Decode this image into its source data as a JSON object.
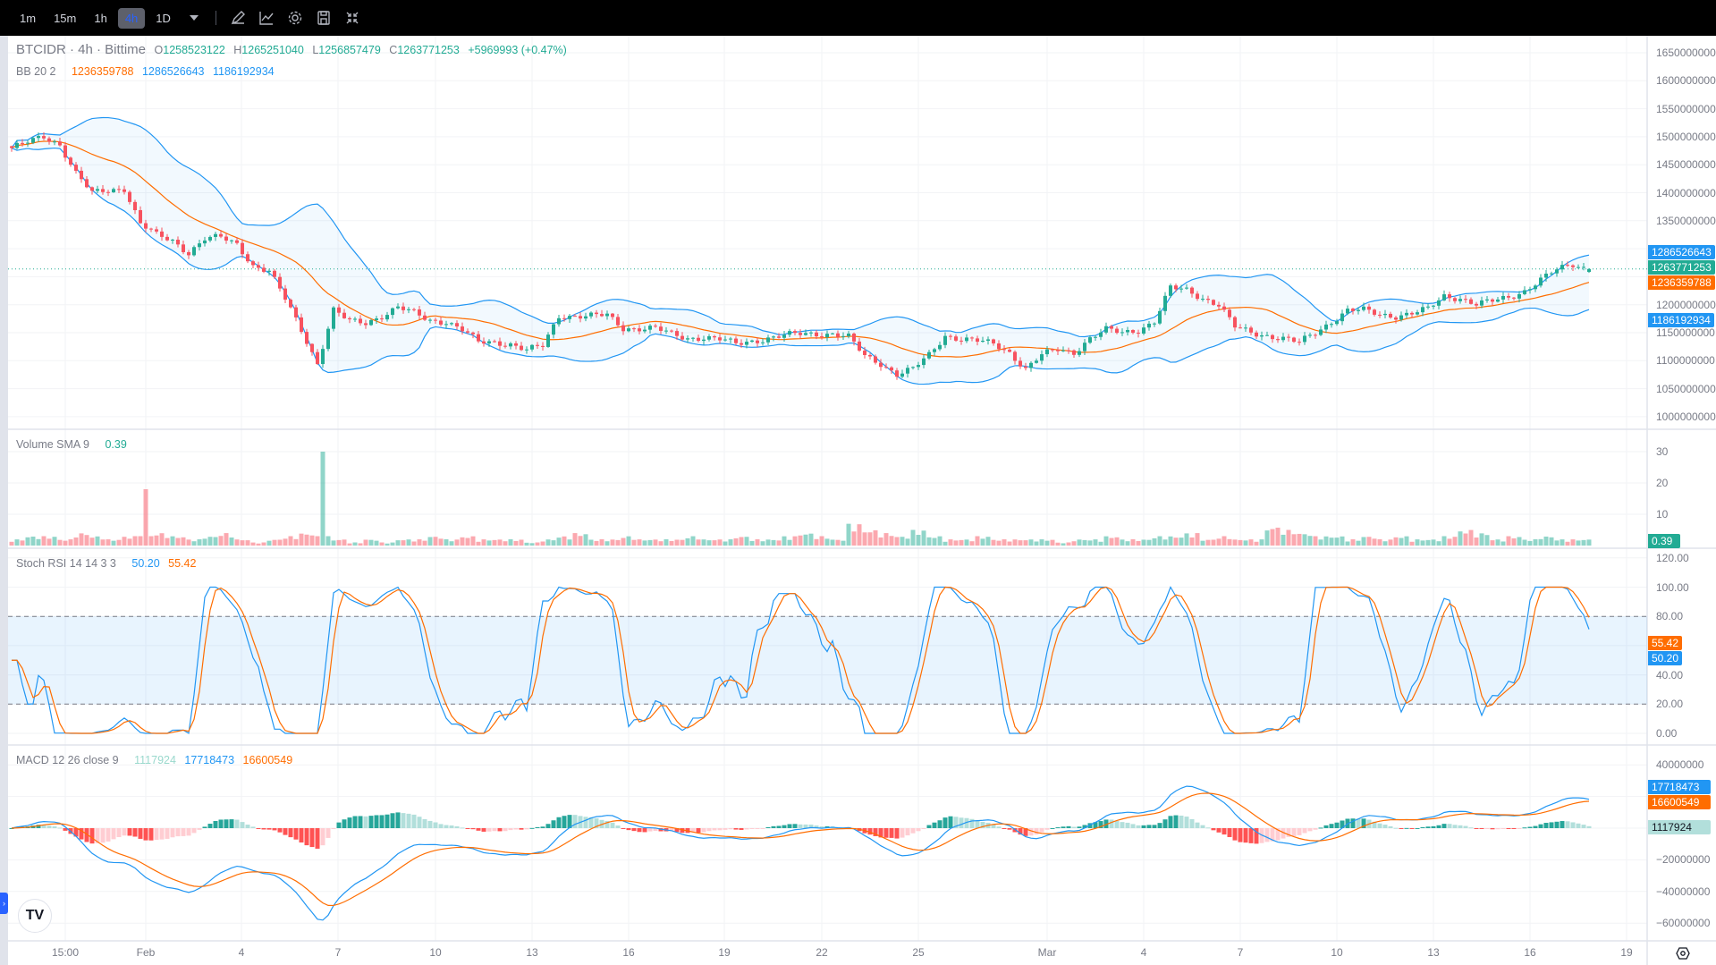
{
  "toolbar": {
    "timeframes": [
      "1m",
      "15m",
      "1h",
      "4h",
      "1D"
    ],
    "active_timeframe": "4h",
    "icons": [
      "chevron-down-icon",
      "drawing-pen-icon",
      "indicators-icon",
      "gear-icon",
      "save-icon",
      "collapse-icon"
    ]
  },
  "legend": {
    "symbol": "BTCIDR · 4h · Bittime",
    "o_label": "O",
    "o": "1258523122",
    "h_label": "H",
    "h": "1265251040",
    "l_label": "L",
    "l": "1256857479",
    "c_label": "C",
    "c": "1263771253",
    "change": "+5969993 (+0.47%)",
    "bb_title": "BB 20 2",
    "bb_basis": "1236359788",
    "bb_upper": "1286526643",
    "bb_lower": "1186192934",
    "vol_title": "Volume SMA 9",
    "vol_value": "0.39",
    "stoch_title": "Stoch RSI 14 14 3 3",
    "stoch_k": "50.20",
    "stoch_d": "55.42",
    "macd_title": "MACD 12 26 close 9",
    "macd_hist": "1117924",
    "macd_line": "17718473",
    "macd_signal": "16600549"
  },
  "colors": {
    "up": "#22ab94",
    "down": "#f7525f",
    "basis": "#ff6d00",
    "bands": "#2196f3",
    "stoch_k": "#2196f3",
    "stoch_d": "#ff6d00",
    "macd": "#2196f3",
    "signal": "#ff6d00",
    "current_price": "#22ab94"
  },
  "chart_data": [
    {
      "type": "candlestick",
      "title": "BTCIDR · 4h · Bittime",
      "interval": "4h",
      "price_axis_ticks": [
        "1650000000",
        "1600000000",
        "1550000000",
        "1500000000",
        "1450000000",
        "1400000000",
        "1350000000",
        "1200000000",
        "1150000000",
        "1100000000",
        "1050000000",
        "1000000000"
      ],
      "ylim": [
        1000000000,
        1650000000
      ],
      "approx_close_millions_every_12h": [
        1480,
        1490,
        1500,
        1486,
        1435,
        1399,
        1404,
        1408,
        1345,
        1324,
        1314,
        1293,
        1318,
        1320,
        1308,
        1270,
        1260,
        1210,
        1155,
        1095,
        1190,
        1170,
        1168,
        1180,
        1195,
        1185,
        1172,
        1170,
        1155,
        1133,
        1133,
        1130,
        1119,
        1126,
        1180,
        1180,
        1180,
        1181,
        1158,
        1158,
        1158,
        1147,
        1140,
        1142,
        1138,
        1130,
        1135,
        1140,
        1145,
        1148,
        1148,
        1148,
        1142,
        1108,
        1095,
        1076,
        1085,
        1110,
        1145,
        1139,
        1135,
        1130,
        1115,
        1085,
        1110,
        1120,
        1115,
        1140,
        1155,
        1150,
        1155,
        1170,
        1230,
        1226,
        1212,
        1200,
        1160,
        1150,
        1145,
        1140,
        1132,
        1150,
        1170,
        1190,
        1190,
        1182,
        1180,
        1185,
        1192,
        1215,
        1212,
        1201,
        1206,
        1213,
        1225,
        1245,
        1262,
        1272,
        1263.77
      ],
      "last": {
        "open": 1258523122,
        "high": 1265251040,
        "low": 1256857479,
        "close": 1263771253
      },
      "overlay": {
        "name": "BB 20 2",
        "basis": 1236359788,
        "upper": 1286526643,
        "lower": 1186192934
      },
      "price_tags": [
        "1286526643",
        "1263771253",
        "1236359788",
        "1186192934"
      ]
    },
    {
      "type": "bar",
      "title": "Volume SMA 9",
      "value": 0.39,
      "axis_ticks": [
        "30",
        "20",
        "10"
      ],
      "ylim": [
        0,
        35
      ],
      "approx_volume_every_12h": [
        2,
        3,
        3,
        2,
        4,
        3,
        2,
        3,
        18,
        4,
        3,
        2,
        3,
        4,
        2,
        1,
        2,
        3,
        4,
        30,
        2,
        1,
        2,
        1,
        2,
        2,
        3,
        2,
        3,
        2,
        2,
        2,
        1,
        2,
        3,
        4,
        2,
        2,
        3,
        2,
        2,
        2,
        3,
        2,
        2,
        3,
        2,
        2,
        3,
        4,
        3,
        2,
        7,
        5,
        4,
        3,
        5,
        3,
        2,
        2,
        3,
        2,
        2,
        2,
        2,
        1,
        2,
        2,
        3,
        2,
        2,
        3,
        3,
        4,
        2,
        3,
        2,
        2,
        6,
        5,
        4,
        3,
        3,
        2,
        3,
        2,
        3,
        2,
        2,
        3,
        5,
        4,
        2,
        3,
        2,
        3,
        2,
        2
      ],
      "tag": "0.39"
    },
    {
      "type": "line",
      "title": "Stoch RSI 14 14 3 3",
      "k": 50.2,
      "d": 55.42,
      "axis_ticks": [
        "120.00",
        "100.00",
        "80.00",
        "40.00",
        "20.00",
        "0.00"
      ],
      "ylim": [
        0,
        120
      ],
      "bands": [
        20,
        80
      ],
      "tags": [
        "55.42",
        "50.20"
      ]
    },
    {
      "type": "line",
      "title": "MACD 12 26 close 9",
      "histogram": 1117924,
      "macd": 17718473,
      "signal": 16600549,
      "axis_ticks": [
        "40000000",
        "−20000000",
        "−40000000",
        "−60000000"
      ],
      "ylim": [
        -65000000,
        45000000
      ],
      "tags": [
        "17718473",
        "16600549",
        "1117924"
      ]
    }
  ],
  "time_axis": [
    "15:00",
    "Feb",
    "4",
    "7",
    "10",
    "13",
    "16",
    "19",
    "22",
    "25",
    "Mar",
    "4",
    "7",
    "10",
    "13",
    "16",
    "19"
  ],
  "logo_text": "TV"
}
